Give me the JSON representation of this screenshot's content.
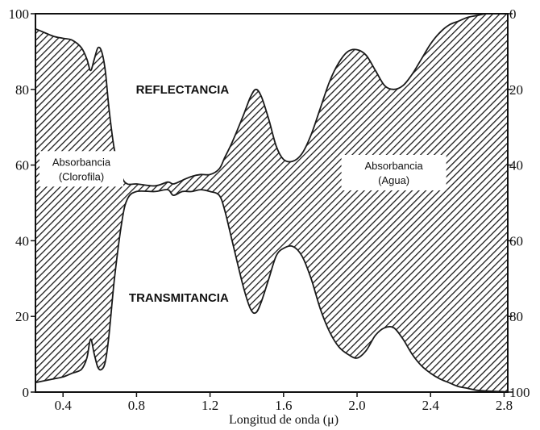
{
  "chart_data": {
    "type": "area",
    "title": "",
    "xlabel": "Longitud de onda (μ)",
    "ylabel_left": "",
    "ylabel_right": "",
    "xlim": [
      0.25,
      2.82
    ],
    "ylim_left": [
      0,
      100
    ],
    "ylim_right": [
      100,
      0
    ],
    "x_ticks": [
      0.4,
      0.8,
      1.2,
      1.6,
      2.0,
      2.4,
      2.8
    ],
    "x_tick_labels": [
      "0.4",
      "0.8",
      "1.2",
      "1.6",
      "2.0",
      "2.4",
      "2.8"
    ],
    "y_left_ticks": [
      0,
      20,
      40,
      60,
      80,
      100
    ],
    "y_left_tick_labels": [
      "0",
      "20",
      "40",
      "60",
      "80",
      "100"
    ],
    "y_right_ticks": [
      0,
      20,
      40,
      60,
      80,
      100
    ],
    "y_right_tick_labels": [
      "0",
      "20",
      "40",
      "60",
      "80",
      "100"
    ],
    "grid": false,
    "fill_pattern": "hatched",
    "fill_color": "#1a1a1a",
    "series": [
      {
        "values_role": "upper boundary (left scale)",
        "x": [
          0.25,
          0.3,
          0.35,
          0.4,
          0.45,
          0.5,
          0.53,
          0.55,
          0.57,
          0.59,
          0.61,
          0.63,
          0.65,
          0.68,
          0.72,
          0.75,
          0.8,
          0.9,
          0.97,
          1.0,
          1.05,
          1.1,
          1.15,
          1.2,
          1.25,
          1.28,
          1.32,
          1.38,
          1.42,
          1.45,
          1.48,
          1.52,
          1.56,
          1.6,
          1.65,
          1.7,
          1.75,
          1.8,
          1.85,
          1.9,
          1.95,
          2.0,
          2.05,
          2.1,
          2.15,
          2.2,
          2.25,
          2.3,
          2.35,
          2.4,
          2.45,
          2.5,
          2.55,
          2.6,
          2.65,
          2.7,
          2.75,
          2.8,
          2.82
        ],
        "y": [
          96,
          95,
          94,
          93.5,
          93,
          91,
          88,
          85,
          88,
          91,
          90,
          85,
          75,
          64,
          57,
          55,
          55,
          54.5,
          55.5,
          55,
          56,
          57,
          57.5,
          57.5,
          59,
          62,
          66,
          73,
          78,
          80,
          78,
          72,
          65,
          61.5,
          61,
          63,
          68,
          75,
          82,
          87,
          90,
          90.5,
          89,
          85,
          81,
          80,
          81,
          84,
          88,
          92,
          95,
          97,
          98,
          99,
          99.5,
          100,
          100,
          100,
          100
        ]
      },
      {
        "values_role": "lower boundary (left scale)",
        "x": [
          0.25,
          0.3,
          0.35,
          0.4,
          0.45,
          0.5,
          0.53,
          0.55,
          0.57,
          0.59,
          0.61,
          0.63,
          0.65,
          0.68,
          0.72,
          0.75,
          0.8,
          0.9,
          0.97,
          1.0,
          1.05,
          1.1,
          1.15,
          1.2,
          1.25,
          1.28,
          1.32,
          1.38,
          1.42,
          1.45,
          1.48,
          1.52,
          1.56,
          1.6,
          1.65,
          1.7,
          1.75,
          1.8,
          1.85,
          1.9,
          1.95,
          2.0,
          2.05,
          2.1,
          2.15,
          2.2,
          2.25,
          2.3,
          2.35,
          2.4,
          2.45,
          2.5,
          2.55,
          2.6,
          2.65,
          2.7,
          2.75,
          2.8,
          2.82
        ],
        "y": [
          2.5,
          3,
          3.5,
          4,
          5,
          6,
          9,
          14,
          10,
          6.5,
          6,
          8,
          15,
          30,
          45,
          51,
          53,
          53,
          53.5,
          52,
          53,
          53,
          53.5,
          53,
          52,
          48,
          40,
          28,
          22,
          21,
          24,
          30,
          36,
          38,
          38.5,
          36,
          30,
          22,
          16,
          12,
          10,
          9,
          11,
          15,
          17,
          17,
          14,
          10,
          7,
          5,
          3.5,
          2.5,
          1.5,
          1,
          0.5,
          0.3,
          0.2,
          0.1,
          0
        ]
      }
    ],
    "annotations": [
      {
        "text": "REFLECTANCIA",
        "x": 1.05,
        "y": 80
      },
      {
        "text": "TRANSMITANCIA",
        "x": 1.03,
        "y": 25
      },
      {
        "lines": [
          "Absorbancia",
          "(Clorofila)"
        ],
        "x": 0.5,
        "y": 59
      },
      {
        "lines": [
          "Absorbancia",
          "(Agua)"
        ],
        "x": 2.2,
        "y": 58
      }
    ]
  }
}
